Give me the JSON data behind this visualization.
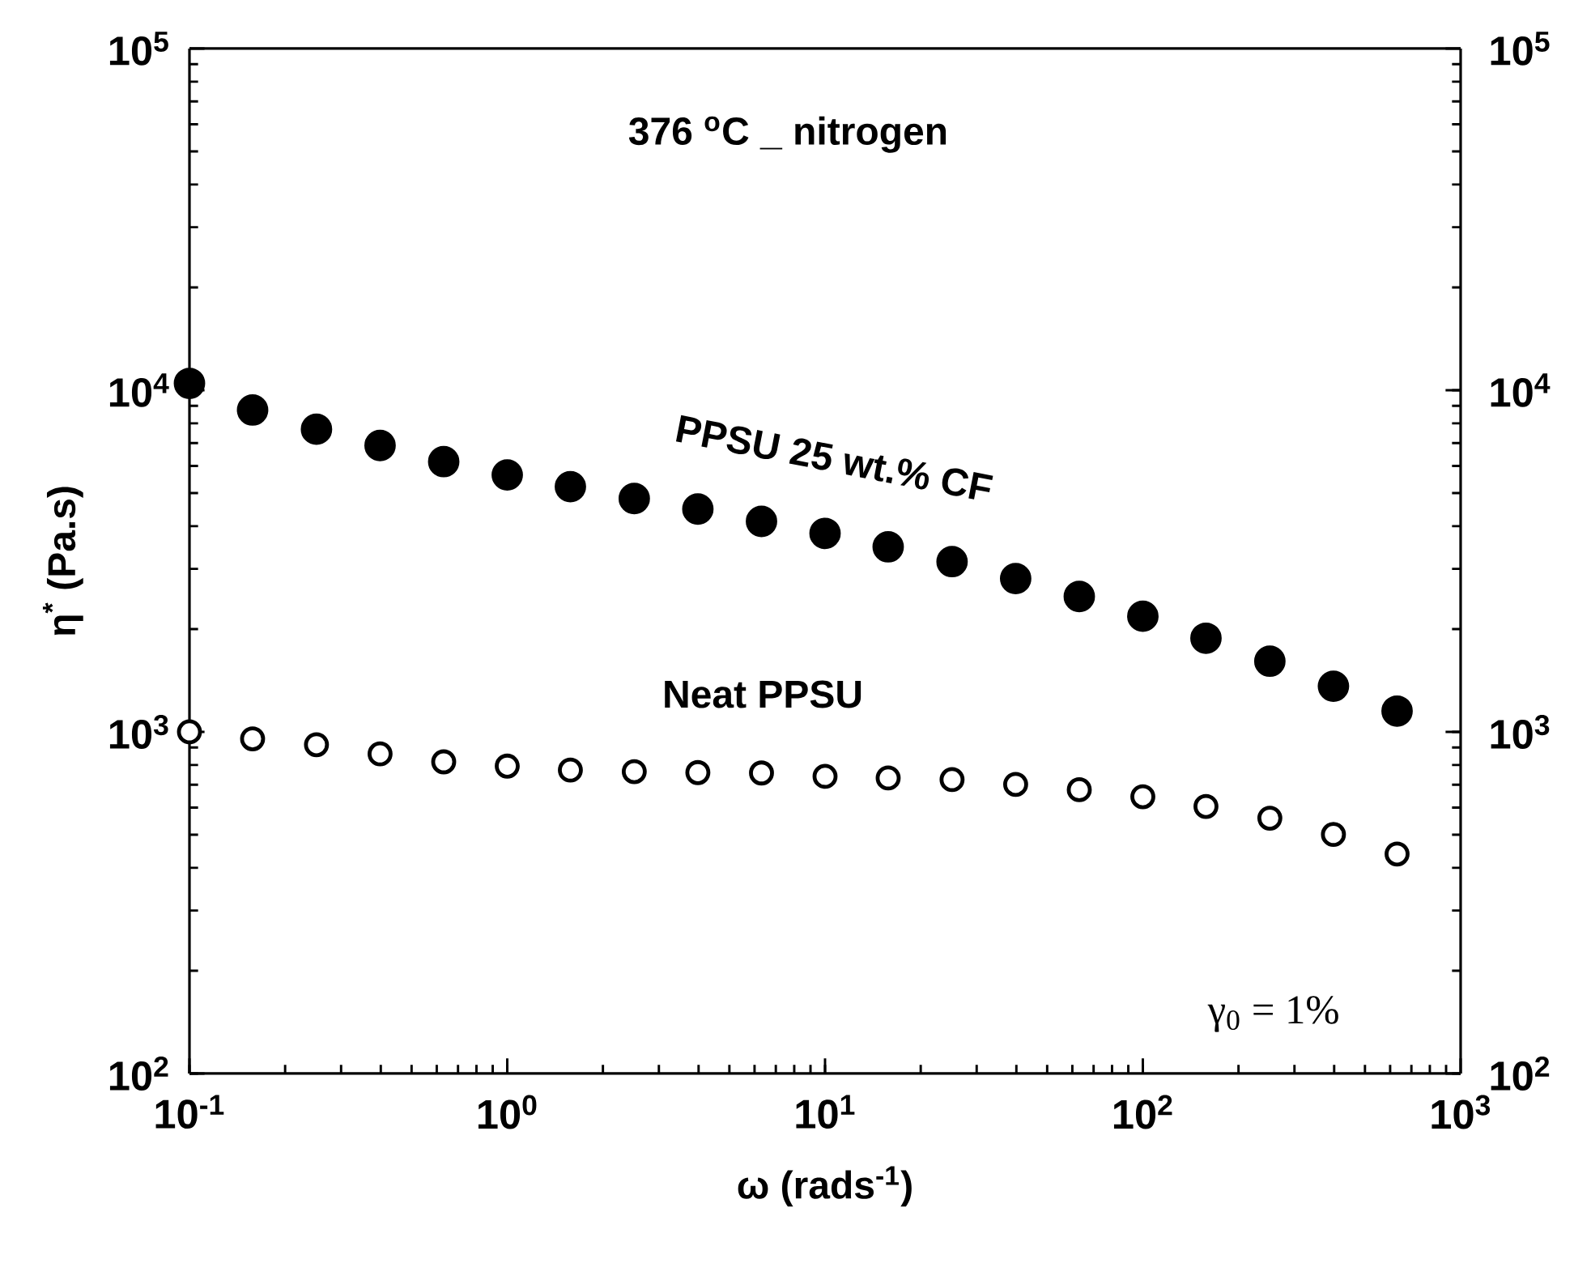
{
  "chart_data": {
    "type": "scatter",
    "xlabel": "ω (rads$^{-1}$)",
    "ylabel": "η$^{*}$ (Pa.s)",
    "log": "xy",
    "marker": "circle",
    "x": [
      0.1,
      0.158,
      0.251,
      0.398,
      0.631,
      1,
      1.58,
      2.51,
      3.98,
      6.31,
      10,
      15.8,
      25.1,
      39.8,
      63.1,
      100,
      158,
      251,
      398,
      631
    ],
    "series": [
      {
        "name": "PPSU 25 wt.% CF",
        "color": "#000000",
        "values": [
          10470,
          8750,
          7690,
          6890,
          6180,
          5650,
          5220,
          4820,
          4490,
          4130,
          3810,
          3480,
          3150,
          2810,
          2490,
          2180,
          1880,
          1610,
          1360,
          1150
        ]
      },
      {
        "name": "Neat PPSU",
        "color": "#000000",
        "values": [
          1000,
          954,
          917,
          862,
          817,
          794,
          773,
          765,
          760,
          758,
          741,
          733,
          725,
          702,
          677,
          646,
          605,
          559,
          501,
          439
        ]
      }
    ],
    "xlim": [
      0.1,
      1000
    ],
    "xticks": [
      {
        "value": 0.1,
        "label": "10$^{-1}$"
      },
      {
        "value": 1,
        "label": "10$^{0}$"
      },
      {
        "value": 10,
        "label": "10$^{1}$"
      },
      {
        "value": 100,
        "label": "10$^{2}$"
      },
      {
        "value": 1000,
        "label": "10$^{3}$"
      }
    ],
    "ylim": [
      100,
      100000
    ],
    "yticks": [
      {
        "value": 100,
        "label": "10$^{2}$"
      },
      {
        "value": 1000,
        "label": "10$^{3}$"
      },
      {
        "value": 10000,
        "label": "10$^{4}$"
      },
      {
        "value": 100000,
        "label": "10$^{5}$"
      }
    ],
    "annotations": [
      "376 $^{o}$C _ nitrogen",
      "γ$_{0}$ = 1%"
    ],
    "legend": false,
    "grid": false
  }
}
